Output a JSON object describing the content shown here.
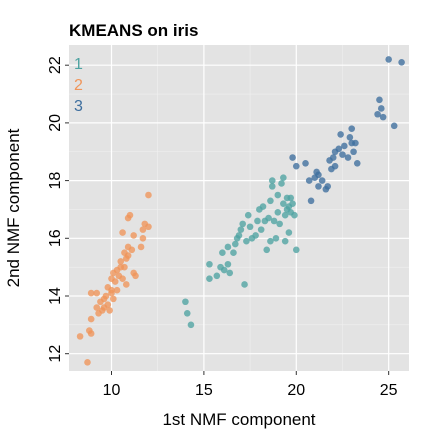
{
  "chart_data": {
    "type": "scatter",
    "title": "KMEANS on iris",
    "xlabel": "1st NMF component",
    "ylabel": "2nd NMF component",
    "xlim": [
      7.7,
      26.1
    ],
    "ylim": [
      11.4,
      22.7
    ],
    "xticks": [
      10,
      15,
      20,
      25
    ],
    "xtick_labels": [
      "10",
      "15",
      "20",
      "25"
    ],
    "yticks": [
      12,
      14,
      16,
      18,
      20,
      22
    ],
    "ytick_labels": [
      "12",
      "14",
      "16",
      "18",
      "20",
      "22"
    ],
    "grid": true,
    "legend_position": "top-left",
    "background_color": "#e3e3e3",
    "series": [
      {
        "name": "1",
        "color": "#4ea3a1",
        "points": [
          [
            14.0,
            13.8
          ],
          [
            14.1,
            13.4
          ],
          [
            14.3,
            13.0
          ],
          [
            15.3,
            14.6
          ],
          [
            15.3,
            15.1
          ],
          [
            15.7,
            14.7
          ],
          [
            15.9,
            15.0
          ],
          [
            16.1,
            14.9
          ],
          [
            16.3,
            15.1
          ],
          [
            16.0,
            15.5
          ],
          [
            16.3,
            15.7
          ],
          [
            16.6,
            15.5
          ],
          [
            16.4,
            14.8
          ],
          [
            17.2,
            14.4
          ],
          [
            16.7,
            15.8
          ],
          [
            16.8,
            16.0
          ],
          [
            16.9,
            16.1
          ],
          [
            17.0,
            16.3
          ],
          [
            17.1,
            16.5
          ],
          [
            17.3,
            15.9
          ],
          [
            17.5,
            16.4
          ],
          [
            17.6,
            16.0
          ],
          [
            17.8,
            16.1
          ],
          [
            17.4,
            16.8
          ],
          [
            17.9,
            16.6
          ],
          [
            18.0,
            17.0
          ],
          [
            18.2,
            17.1
          ],
          [
            18.1,
            16.3
          ],
          [
            18.3,
            16.6
          ],
          [
            18.4,
            15.6
          ],
          [
            18.5,
            16.7
          ],
          [
            18.6,
            17.3
          ],
          [
            18.7,
            17.8
          ],
          [
            18.7,
            18.0
          ],
          [
            18.8,
            16.6
          ],
          [
            18.9,
            16.0
          ],
          [
            19.0,
            17.5
          ],
          [
            19.0,
            16.9
          ],
          [
            19.1,
            16.5
          ],
          [
            19.2,
            17.9
          ],
          [
            19.3,
            18.1
          ],
          [
            19.3,
            17.2
          ],
          [
            19.4,
            16.8
          ],
          [
            19.5,
            17.4
          ],
          [
            19.5,
            17.0
          ],
          [
            19.6,
            16.2
          ],
          [
            19.7,
            16.9
          ],
          [
            19.4,
            15.9
          ],
          [
            19.6,
            17.1
          ],
          [
            19.7,
            17.4
          ],
          [
            19.9,
            16.8
          ],
          [
            20.0,
            15.6
          ],
          [
            18.6,
            15.9
          ],
          [
            19.8,
            17.2
          ]
        ]
      },
      {
        "name": "2",
        "color": "#f0955a",
        "points": [
          [
            8.3,
            12.6
          ],
          [
            8.8,
            12.8
          ],
          [
            8.9,
            12.7
          ],
          [
            8.7,
            11.7
          ],
          [
            8.9,
            13.2
          ],
          [
            8.9,
            14.1
          ],
          [
            9.2,
            13.6
          ],
          [
            9.3,
            13.4
          ],
          [
            9.4,
            13.8
          ],
          [
            9.5,
            13.5
          ],
          [
            9.6,
            13.6
          ],
          [
            9.6,
            13.9
          ],
          [
            9.7,
            14.0
          ],
          [
            9.8,
            13.7
          ],
          [
            9.8,
            14.3
          ],
          [
            9.9,
            13.5
          ],
          [
            10.0,
            14.6
          ],
          [
            10.0,
            14.1
          ],
          [
            10.1,
            14.8
          ],
          [
            10.1,
            13.9
          ],
          [
            10.2,
            14.5
          ],
          [
            10.3,
            14.9
          ],
          [
            10.3,
            14.2
          ],
          [
            10.4,
            14.7
          ],
          [
            10.5,
            15.0
          ],
          [
            10.5,
            15.2
          ],
          [
            10.6,
            14.6
          ],
          [
            10.7,
            15.5
          ],
          [
            10.7,
            15.0
          ],
          [
            10.8,
            15.3
          ],
          [
            10.8,
            14.4
          ],
          [
            10.9,
            15.7
          ],
          [
            10.9,
            15.4
          ],
          [
            10.6,
            16.2
          ],
          [
            10.9,
            16.7
          ],
          [
            11.0,
            16.8
          ],
          [
            11.1,
            15.6
          ],
          [
            11.2,
            14.8
          ],
          [
            11.2,
            16.1
          ],
          [
            11.3,
            14.7
          ],
          [
            11.6,
            15.7
          ],
          [
            11.7,
            16.0
          ],
          [
            11.8,
            16.5
          ],
          [
            11.7,
            16.3
          ],
          [
            12.0,
            17.5
          ],
          [
            12.0,
            16.4
          ],
          [
            9.2,
            14.1
          ],
          [
            10.0,
            14.2
          ]
        ]
      },
      {
        "name": "3",
        "color": "#3d6e9e",
        "points": [
          [
            19.8,
            18.8
          ],
          [
            20.0,
            18.5
          ],
          [
            20.5,
            18.6
          ],
          [
            20.7,
            18.0
          ],
          [
            20.8,
            17.3
          ],
          [
            21.0,
            18.1
          ],
          [
            21.1,
            18.3
          ],
          [
            21.2,
            17.8
          ],
          [
            21.2,
            18.2
          ],
          [
            21.4,
            18.0
          ],
          [
            21.6,
            17.7
          ],
          [
            21.7,
            17.8
          ],
          [
            21.8,
            18.7
          ],
          [
            21.9,
            18.4
          ],
          [
            22.0,
            18.8
          ],
          [
            22.1,
            18.5
          ],
          [
            22.1,
            19.0
          ],
          [
            22.3,
            19.1
          ],
          [
            22.4,
            19.6
          ],
          [
            22.5,
            18.9
          ],
          [
            22.6,
            19.2
          ],
          [
            22.8,
            18.8
          ],
          [
            22.9,
            19.5
          ],
          [
            23.0,
            19.3
          ],
          [
            23.0,
            19.8
          ],
          [
            23.1,
            19.0
          ],
          [
            23.2,
            19.3
          ],
          [
            23.3,
            18.6
          ],
          [
            24.4,
            20.3
          ],
          [
            24.5,
            20.8
          ],
          [
            24.6,
            20.5
          ],
          [
            24.7,
            20.2
          ],
          [
            25.3,
            19.9
          ],
          [
            25.0,
            22.2
          ],
          [
            25.7,
            22.1
          ]
        ]
      }
    ]
  }
}
